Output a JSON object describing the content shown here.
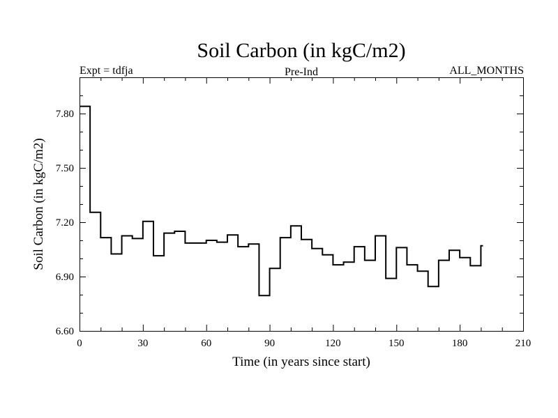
{
  "chart_data": {
    "type": "line",
    "step": true,
    "title": "Soil Carbon (in kgC/m2)",
    "subtitle_left": "Expt = tdfja",
    "subtitle_center": "Pre-Ind",
    "subtitle_right": "ALL_MONTHS",
    "xlabel": "Time (in years since start)",
    "ylabel": "Soil Carbon (in kgC/m2)",
    "xlim": [
      0,
      210
    ],
    "ylim": [
      6.6,
      8.0
    ],
    "xticks": [
      0,
      30,
      60,
      90,
      120,
      150,
      180,
      210
    ],
    "xtick_labels": [
      "0",
      "30",
      "60",
      "90",
      "120",
      "150",
      "180",
      "210"
    ],
    "yticks": [
      6.6,
      6.9,
      7.2,
      7.5,
      7.8
    ],
    "ytick_labels": [
      "6.60",
      "6.90",
      "7.20",
      "7.50",
      "7.80"
    ],
    "series": [
      {
        "name": "Soil Carbon",
        "color": "#000000",
        "x": [
          0,
          5,
          10,
          15,
          20,
          25,
          30,
          35,
          40,
          45,
          50,
          55,
          60,
          65,
          70,
          75,
          80,
          85,
          90,
          95,
          100,
          105,
          110,
          115,
          120,
          125,
          130,
          135,
          140,
          145,
          150,
          155,
          160,
          165,
          170,
          175,
          180,
          185,
          190
        ],
        "values": [
          7.84,
          7.255,
          7.115,
          7.025,
          7.125,
          7.11,
          7.205,
          7.015,
          7.14,
          7.15,
          7.085,
          7.085,
          7.1,
          7.09,
          7.13,
          7.065,
          7.08,
          6.795,
          6.945,
          7.115,
          7.18,
          7.105,
          7.055,
          7.02,
          6.965,
          6.98,
          7.065,
          6.99,
          7.125,
          6.89,
          7.06,
          6.965,
          6.93,
          6.845,
          6.99,
          7.045,
          7.005,
          6.96,
          7.07
        ],
        "end_x": 191
      }
    ]
  }
}
